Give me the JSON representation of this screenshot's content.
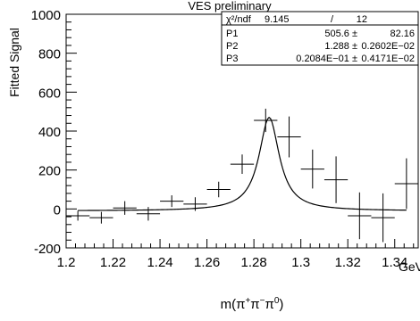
{
  "chart_data": {
    "type": "scatter",
    "title": "VES preliminary",
    "xlabel_base": "m(π",
    "xlabel_parts": [
      {
        "base": "m(π",
        "sup": "+"
      },
      {
        "base": "π",
        "sup": "−"
      },
      {
        "base": "π",
        "sup": "0"
      },
      {
        "base": ")",
        "sup": ""
      }
    ],
    "x_unit": "GeV",
    "ylabel": "Fitted Signal",
    "xlim": [
      1.2,
      1.35
    ],
    "ylim": [
      -200,
      1000
    ],
    "x_ticks": [
      "1.2",
      "1.22",
      "1.24",
      "1.26",
      "1.28",
      "1.3",
      "1.32",
      "1.34"
    ],
    "x_tick_values": [
      1.2,
      1.22,
      1.24,
      1.26,
      1.28,
      1.3,
      1.32,
      1.34
    ],
    "y_ticks": [
      "-200",
      "0",
      "200",
      "400",
      "600",
      "800",
      "1000"
    ],
    "y_tick_values": [
      -200,
      0,
      200,
      400,
      600,
      800,
      1000
    ],
    "grid": false,
    "series": [
      {
        "x": [
          1.205,
          1.215,
          1.225,
          1.235,
          1.245,
          1.255,
          1.265,
          1.275,
          1.285,
          1.295,
          1.305,
          1.315,
          1.325,
          1.335,
          1.345
        ],
        "y": [
          -35,
          -45,
          5,
          -25,
          40,
          25,
          100,
          230,
          455,
          370,
          205,
          150,
          -35,
          -45,
          130
        ],
        "y_err": [
          25,
          30,
          35,
          35,
          30,
          35,
          40,
          50,
          60,
          105,
          100,
          120,
          120,
          125,
          130
        ],
        "x_err": 0.005
      }
    ],
    "fit_curve": {
      "model": "Breit-Wigner peak over constant background",
      "peak_x": 1.2865,
      "peak_y": 470,
      "width": 0.0105,
      "background": -10
    },
    "stats_box": {
      "rows": [
        {
          "label": "χ²/ndf",
          "left": "9.145",
          "sep": "/",
          "right": "12"
        },
        {
          "label": "P1",
          "left": "505.6 ±",
          "sep": "",
          "right": "82.16"
        },
        {
          "label": "P2",
          "left": "1.288 ±",
          "sep": "",
          "right": "0.2602E−02"
        },
        {
          "label": "P3",
          "left": "0.2084E−01 ±",
          "sep": "",
          "right": "0.4171E−02"
        }
      ]
    }
  }
}
